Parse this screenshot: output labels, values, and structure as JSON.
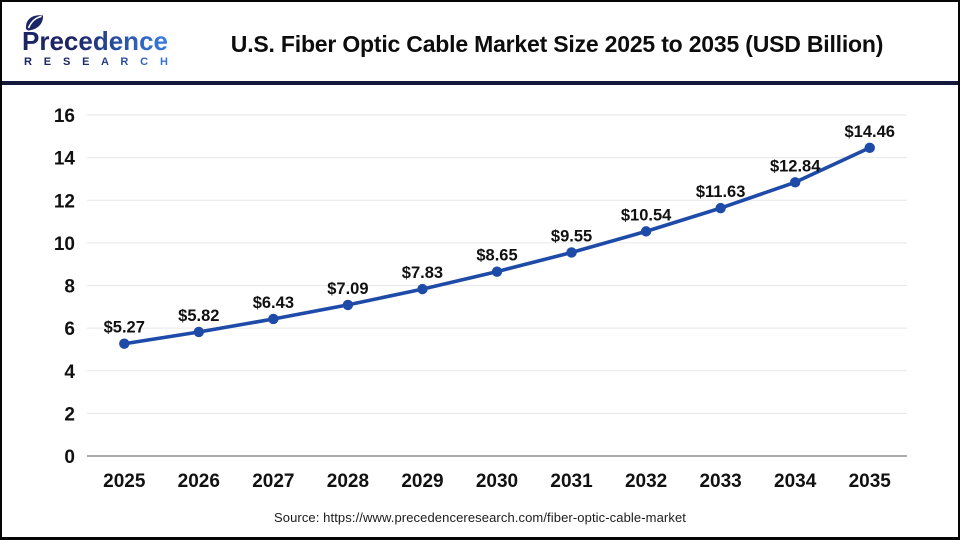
{
  "header": {
    "logo": {
      "name_top": "Precedence",
      "name_bottom": "R E S E A R C H"
    },
    "title": "U.S. Fiber Optic Cable Market Size 2025 to 2035 (USD Billion)"
  },
  "chart_data": {
    "type": "line",
    "title": "U.S. Fiber Optic Cable Market Size 2025 to 2035 (USD Billion)",
    "categories": [
      "2025",
      "2026",
      "2027",
      "2028",
      "2029",
      "2030",
      "2031",
      "2032",
      "2033",
      "2034",
      "2035"
    ],
    "values": [
      5.27,
      5.82,
      6.43,
      7.09,
      7.83,
      8.65,
      9.55,
      10.54,
      11.63,
      12.84,
      14.46
    ],
    "point_labels": [
      "$5.27",
      "$5.82",
      "$6.43",
      "$7.09",
      "$7.83",
      "$8.65",
      "$9.55",
      "$10.54",
      "$11.63",
      "$12.84",
      "$14.46"
    ],
    "xlabel": "",
    "ylabel": "",
    "ylim": [
      0,
      16
    ],
    "ytick_step": 2,
    "grid": true,
    "legend": "none",
    "line_color": "#1e4aa8",
    "marker_color": "#1e4aa8"
  },
  "footer": {
    "source": "Source: https://www.precedenceresearch.com/fiber-optic-cable-market"
  },
  "colors": {
    "divider": "#14193b",
    "grid": "#e7e7e7",
    "axis_zero": "#ababab",
    "label_text": "#111111",
    "logo_navy": "#1c2566",
    "logo_blue": "#3a7de2"
  }
}
